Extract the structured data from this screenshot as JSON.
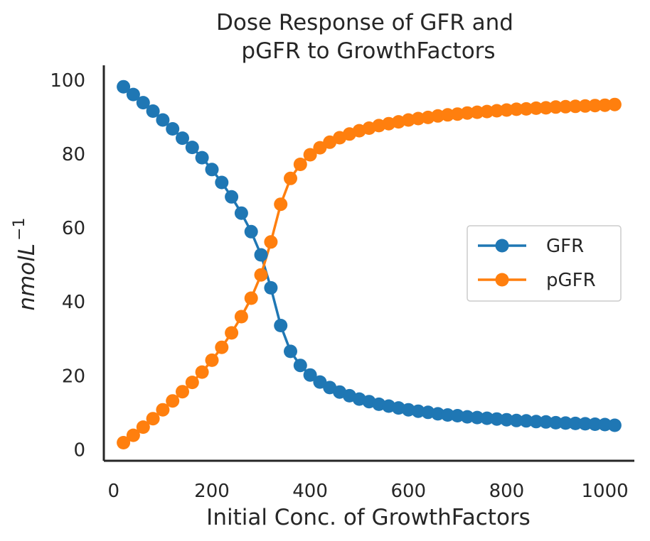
{
  "chart_data": {
    "type": "line",
    "title_lines": [
      "Dose Response of GFR and",
      "pGFR to GrowthFactors"
    ],
    "xlabel": "Initial Conc. of GrowthFactors",
    "ylabel_base": "nmolL",
    "ylabel_sup": "−1",
    "xlim": [
      -20,
      1060
    ],
    "ylim": [
      -3,
      104
    ],
    "x_ticks": [
      0,
      200,
      400,
      600,
      800,
      1000
    ],
    "y_ticks": [
      0,
      20,
      40,
      60,
      80,
      100
    ],
    "grid": false,
    "legend_position": "center-right",
    "x": [
      20,
      40,
      60,
      80,
      100,
      120,
      140,
      160,
      180,
      200,
      220,
      240,
      260,
      280,
      300,
      320,
      340,
      360,
      380,
      400,
      420,
      440,
      460,
      480,
      500,
      520,
      540,
      560,
      580,
      600,
      620,
      640,
      660,
      680,
      700,
      720,
      740,
      760,
      780,
      800,
      820,
      840,
      860,
      880,
      900,
      920,
      940,
      960,
      980,
      1000,
      1020
    ],
    "series": [
      {
        "name": "GFR",
        "color": "#1f77b4",
        "values": [
          98.2,
          96.1,
          93.9,
          91.6,
          89.2,
          86.8,
          84.3,
          81.8,
          79.0,
          75.8,
          72.3,
          68.4,
          64.0,
          59.0,
          52.7,
          43.8,
          33.6,
          26.6,
          22.8,
          20.2,
          18.3,
          16.8,
          15.6,
          14.6,
          13.7,
          13.0,
          12.3,
          11.8,
          11.3,
          10.8,
          10.4,
          10.1,
          9.7,
          9.4,
          9.2,
          8.9,
          8.7,
          8.5,
          8.3,
          8.1,
          7.9,
          7.8,
          7.6,
          7.5,
          7.3,
          7.2,
          7.1,
          7.0,
          6.9,
          6.8,
          6.6
        ]
      },
      {
        "name": "pGFR",
        "color": "#ff7f0e",
        "values": [
          1.9,
          3.9,
          6.1,
          8.4,
          10.8,
          13.2,
          15.7,
          18.2,
          21.0,
          24.2,
          27.7,
          31.6,
          36.0,
          41.0,
          47.3,
          56.2,
          66.4,
          73.4,
          77.2,
          79.8,
          81.7,
          83.2,
          84.4,
          85.4,
          86.3,
          87.0,
          87.7,
          88.2,
          88.7,
          89.2,
          89.6,
          89.9,
          90.3,
          90.6,
          90.8,
          91.1,
          91.3,
          91.5,
          91.7,
          91.9,
          92.1,
          92.2,
          92.4,
          92.5,
          92.7,
          92.8,
          92.9,
          93.0,
          93.1,
          93.2,
          93.4
        ]
      }
    ]
  }
}
